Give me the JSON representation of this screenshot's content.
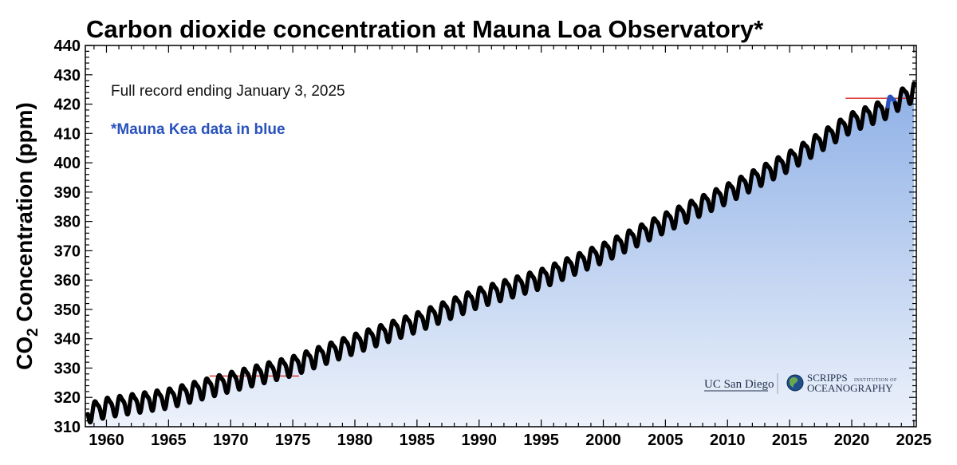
{
  "chart_data": {
    "type": "scatter",
    "title": "Carbon dioxide concentration at Mauna Loa Observatory*",
    "ylabel_main": "CO",
    "ylabel_sub": "2",
    "ylabel_rest": " Concentration (ppm)",
    "xlabel": "",
    "xlim": [
      1958.3,
      2025.2
    ],
    "ylim": [
      310,
      440
    ],
    "xticks": [
      1960,
      1965,
      1970,
      1975,
      1980,
      1985,
      1990,
      1995,
      2000,
      2005,
      2010,
      2015,
      2020,
      2025
    ],
    "xtick_labels": [
      "1960",
      "1965",
      "1970",
      "1975",
      "1980",
      "1985",
      "1990",
      "1995",
      "2000",
      "2005",
      "2010",
      "2015",
      "2020",
      "2025"
    ],
    "yticks": [
      310,
      320,
      330,
      340,
      350,
      360,
      370,
      380,
      390,
      400,
      410,
      420,
      430,
      440
    ],
    "ytick_labels": [
      "310",
      "320",
      "330",
      "340",
      "350",
      "360",
      "370",
      "380",
      "390",
      "400",
      "410",
      "420",
      "430",
      "440"
    ],
    "series": [
      {
        "color": "#000000",
        "x": [
          1958.5,
          1960,
          1965,
          1970,
          1975,
          1980,
          1985,
          1990,
          1995,
          2000,
          2005,
          2010,
          2015,
          2020,
          2022.9
        ],
        "trend": [
          315.0,
          316.9,
          320.0,
          325.7,
          331.1,
          338.7,
          346.0,
          354.4,
          360.8,
          369.7,
          380.0,
          389.9,
          401.0,
          414.2,
          419.0
        ],
        "seasonal_amplitude": 3.2
      },
      {
        "color": "#2a52be",
        "x": [
          2022.9,
          2023.5
        ],
        "trend": [
          419.0,
          421.0
        ],
        "seasonal_amplitude": 3.2
      },
      {
        "color": "#000000",
        "x": [
          2023.5,
          2025.0
        ],
        "trend": [
          421.0,
          424.6
        ],
        "seasonal_amplitude": 3.2
      }
    ],
    "reference_lines": [
      {
        "color": "#d62b20",
        "x": [
          1968.3,
          1975.5
        ],
        "y": 327.3
      },
      {
        "color": "#d62b20",
        "x": [
          2019.5,
          2025.2
        ],
        "y": 422.0
      }
    ],
    "fill_gradient": [
      "#edf2fb",
      "#8eb0e6"
    ],
    "grid": false,
    "annotations": [
      {
        "text": "Full record ending January 3, 2025",
        "color": "#111111"
      },
      {
        "text": "*Mauna Kea data in blue",
        "color": "#2a52be"
      }
    ]
  },
  "logos": {
    "ucsd": "UC San Diego",
    "sio_line1": "SCRIPPS",
    "sio_line1_small": "INSTITUTION OF",
    "sio_line2": "OCEANOGRAPHY"
  }
}
